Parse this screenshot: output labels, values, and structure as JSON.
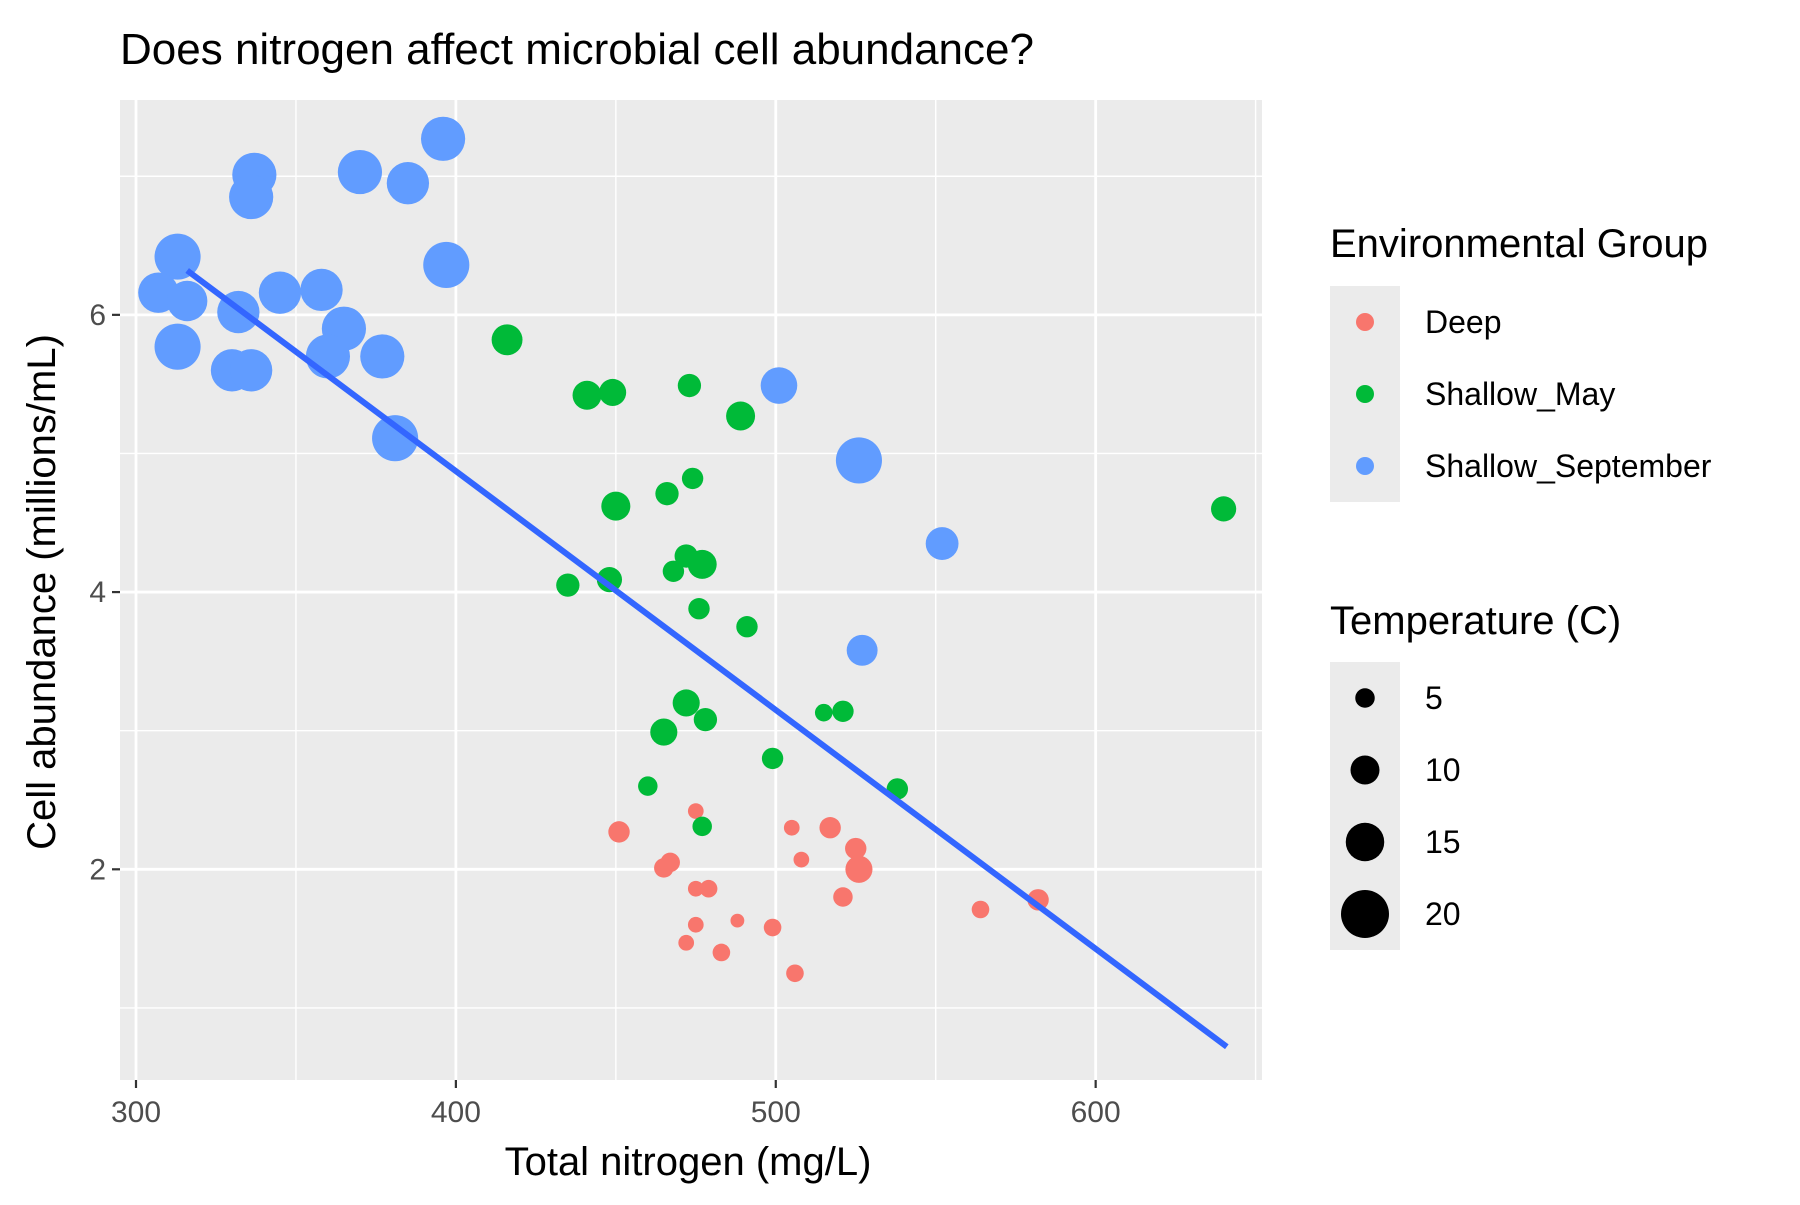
{
  "chart_data": {
    "type": "scatter",
    "title": "Does nitrogen affect microbial cell abundance?",
    "xlabel": "Total nitrogen (mg/L)",
    "ylabel": "Cell abundance (millions/mL)",
    "xlim": [
      295,
      652
    ],
    "ylim": [
      0.48,
      7.55
    ],
    "x_ticks": [
      300,
      400,
      500,
      600
    ],
    "y_ticks": [
      2,
      4,
      6
    ],
    "grid": true,
    "panel_background": "#EBEBEB",
    "grid_color": "#FFFFFF",
    "legend_position": "right",
    "color_legend": {
      "title": "Environmental Group",
      "entries": [
        {
          "label": "Deep",
          "color": "#F8766D"
        },
        {
          "label": "Shallow_May",
          "color": "#00BA38"
        },
        {
          "label": "Shallow_September",
          "color": "#619CFF"
        }
      ]
    },
    "size_legend": {
      "title": "Temperature (C)",
      "entries": [
        {
          "label": "5",
          "value": 5
        },
        {
          "label": "10",
          "value": 10
        },
        {
          "label": "15",
          "value": 15
        },
        {
          "label": "20",
          "value": 20
        }
      ]
    },
    "trend_line": {
      "color": "#3366FF",
      "method": "linear fit",
      "x": [
        316,
        641
      ],
      "y": [
        6.32,
        0.72
      ]
    },
    "series": [
      {
        "name": "Deep",
        "color": "#F8766D",
        "points": [
          {
            "x": 451,
            "y": 2.27,
            "temp": 6
          },
          {
            "x": 467,
            "y": 2.05,
            "temp": 5
          },
          {
            "x": 465,
            "y": 2.01,
            "temp": 5
          },
          {
            "x": 475,
            "y": 2.42,
            "temp": 3
          },
          {
            "x": 475,
            "y": 1.86,
            "temp": 3
          },
          {
            "x": 479,
            "y": 1.86,
            "temp": 4
          },
          {
            "x": 475,
            "y": 1.6,
            "temp": 3
          },
          {
            "x": 472,
            "y": 1.47,
            "temp": 3
          },
          {
            "x": 483,
            "y": 1.4,
            "temp": 4
          },
          {
            "x": 488,
            "y": 1.63,
            "temp": 2
          },
          {
            "x": 499,
            "y": 1.58,
            "temp": 4
          },
          {
            "x": 505,
            "y": 2.3,
            "temp": 3
          },
          {
            "x": 508,
            "y": 2.07,
            "temp": 3
          },
          {
            "x": 506,
            "y": 1.25,
            "temp": 4
          },
          {
            "x": 517,
            "y": 2.3,
            "temp": 6
          },
          {
            "x": 521,
            "y": 1.8,
            "temp": 5
          },
          {
            "x": 525,
            "y": 2.15,
            "temp": 6
          },
          {
            "x": 526,
            "y": 2.0,
            "temp": 9
          },
          {
            "x": 564,
            "y": 1.71,
            "temp": 4
          },
          {
            "x": 582,
            "y": 1.78,
            "temp": 6
          }
        ]
      },
      {
        "name": "Shallow_May",
        "color": "#00BA38",
        "points": [
          {
            "x": 416,
            "y": 5.82,
            "temp": 11
          },
          {
            "x": 441,
            "y": 5.42,
            "temp": 10
          },
          {
            "x": 449,
            "y": 5.44,
            "temp": 9
          },
          {
            "x": 435,
            "y": 4.05,
            "temp": 7
          },
          {
            "x": 448,
            "y": 4.09,
            "temp": 8
          },
          {
            "x": 450,
            "y": 4.62,
            "temp": 10
          },
          {
            "x": 466,
            "y": 4.71,
            "temp": 7
          },
          {
            "x": 473,
            "y": 5.49,
            "temp": 7
          },
          {
            "x": 474,
            "y": 4.82,
            "temp": 6
          },
          {
            "x": 489,
            "y": 5.27,
            "temp": 10
          },
          {
            "x": 472,
            "y": 4.26,
            "temp": 7
          },
          {
            "x": 468,
            "y": 4.15,
            "temp": 6
          },
          {
            "x": 477,
            "y": 4.2,
            "temp": 10
          },
          {
            "x": 476,
            "y": 3.88,
            "temp": 6
          },
          {
            "x": 491,
            "y": 3.75,
            "temp": 6
          },
          {
            "x": 472,
            "y": 3.2,
            "temp": 9
          },
          {
            "x": 478,
            "y": 3.08,
            "temp": 7
          },
          {
            "x": 465,
            "y": 2.99,
            "temp": 9
          },
          {
            "x": 460,
            "y": 2.6,
            "temp": 5
          },
          {
            "x": 477,
            "y": 2.31,
            "temp": 5
          },
          {
            "x": 499,
            "y": 2.8,
            "temp": 6
          },
          {
            "x": 515,
            "y": 3.13,
            "temp": 4
          },
          {
            "x": 521,
            "y": 3.14,
            "temp": 6
          },
          {
            "x": 538,
            "y": 2.58,
            "temp": 6
          },
          {
            "x": 640,
            "y": 4.6,
            "temp": 8
          }
        ]
      },
      {
        "name": "Shallow_September",
        "color": "#619CFF",
        "points": [
          {
            "x": 396,
            "y": 7.27,
            "temp": 18
          },
          {
            "x": 337,
            "y": 7.01,
            "temp": 18
          },
          {
            "x": 370,
            "y": 7.03,
            "temp": 18
          },
          {
            "x": 385,
            "y": 6.95,
            "temp": 17
          },
          {
            "x": 336,
            "y": 6.85,
            "temp": 18
          },
          {
            "x": 313,
            "y": 6.42,
            "temp": 19
          },
          {
            "x": 397,
            "y": 6.36,
            "temp": 19
          },
          {
            "x": 307,
            "y": 6.16,
            "temp": 16
          },
          {
            "x": 316,
            "y": 6.1,
            "temp": 16
          },
          {
            "x": 332,
            "y": 6.02,
            "temp": 17
          },
          {
            "x": 345,
            "y": 6.16,
            "temp": 17
          },
          {
            "x": 358,
            "y": 6.18,
            "temp": 17
          },
          {
            "x": 365,
            "y": 5.9,
            "temp": 18
          },
          {
            "x": 313,
            "y": 5.77,
            "temp": 19
          },
          {
            "x": 330,
            "y": 5.6,
            "temp": 17
          },
          {
            "x": 336,
            "y": 5.6,
            "temp": 17
          },
          {
            "x": 360,
            "y": 5.7,
            "temp": 18
          },
          {
            "x": 377,
            "y": 5.7,
            "temp": 18
          },
          {
            "x": 381,
            "y": 5.11,
            "temp": 19
          },
          {
            "x": 501,
            "y": 5.49,
            "temp": 14
          },
          {
            "x": 526,
            "y": 4.95,
            "temp": 19
          },
          {
            "x": 552,
            "y": 4.35,
            "temp": 12
          },
          {
            "x": 527,
            "y": 3.58,
            "temp": 11
          }
        ]
      }
    ]
  }
}
